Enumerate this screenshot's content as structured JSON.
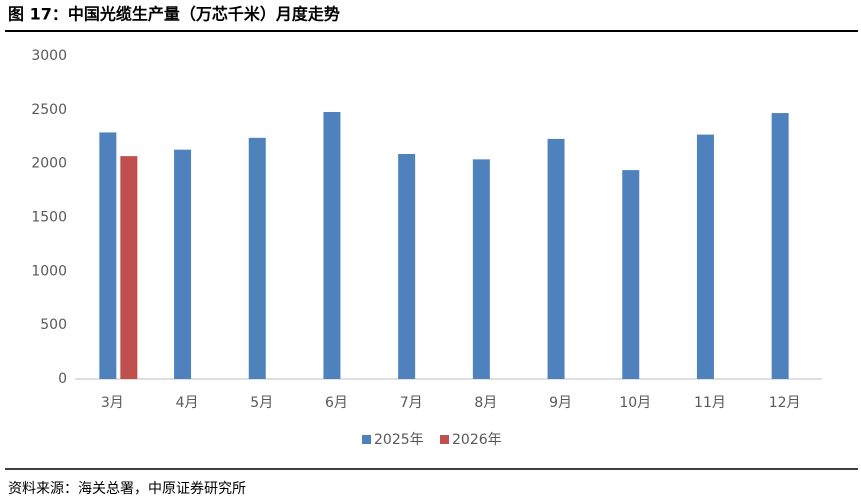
{
  "chart_data": {
    "type": "bar",
    "title": "图 17：中国光缆生产量（万芯千米）月度走势",
    "categories": [
      "3月",
      "4月",
      "5月",
      "6月",
      "7月",
      "8月",
      "9月",
      "10月",
      "11月",
      "12月"
    ],
    "series": [
      {
        "name": "2025年",
        "color": "#4f81bd",
        "values": [
          2290,
          2130,
          2240,
          2480,
          2090,
          2040,
          2230,
          1940,
          2270,
          2470
        ]
      },
      {
        "name": "2026年",
        "color": "#c0504d",
        "values": [
          2070,
          null,
          null,
          null,
          null,
          null,
          null,
          null,
          null,
          null
        ]
      }
    ],
    "ylim": [
      0,
      3000
    ],
    "yticks": [
      0,
      500,
      1000,
      1500,
      2000,
      2500,
      3000
    ],
    "grid": false,
    "legend": "bottom",
    "source": "资料来源：海关总署，中原证券研究所"
  }
}
